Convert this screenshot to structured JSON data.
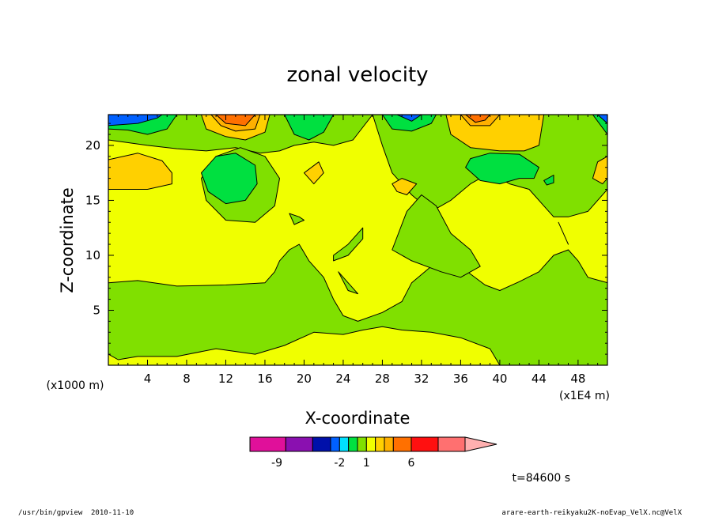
{
  "chart_data": {
    "type": "heatmap",
    "title": "zonal velocity",
    "xlabel": "X-coordinate",
    "ylabel": "Z-coordinate",
    "x_unit": "(x1E4 m)",
    "y_unit": "(x1000 m)",
    "xlim": [
      0,
      51
    ],
    "ylim": [
      0,
      22.8
    ],
    "x_ticks": [
      "4",
      "8",
      "12",
      "16",
      "20",
      "24",
      "28",
      "32",
      "36",
      "40",
      "44",
      "48"
    ],
    "y_ticks": [
      "5",
      "10",
      "15",
      "20"
    ],
    "colorbar": {
      "labels": [
        {
          "text": "-9",
          "at": -9
        },
        {
          "text": "-2",
          "at": -2
        },
        {
          "text": "1",
          "at": 1
        },
        {
          "text": "6",
          "at": 6
        }
      ],
      "levels": [
        {
          "from": -12,
          "to": -8,
          "color": "#e0109a"
        },
        {
          "from": -8,
          "to": -5,
          "color": "#8a10b0"
        },
        {
          "from": -5,
          "to": -3,
          "color": "#0010aa"
        },
        {
          "from": -3,
          "to": -2,
          "color": "#0060ff"
        },
        {
          "from": -2,
          "to": -1,
          "color": "#00e0ff"
        },
        {
          "from": -1,
          "to": 0,
          "color": "#00e040"
        },
        {
          "from": 0,
          "to": 1,
          "color": "#80e000"
        },
        {
          "from": 1,
          "to": 2,
          "color": "#f0ff00"
        },
        {
          "from": 2,
          "to": 3,
          "color": "#ffd000"
        },
        {
          "from": 3,
          "to": 4,
          "color": "#ffb000"
        },
        {
          "from": 4,
          "to": 6,
          "color": "#ff7000"
        },
        {
          "from": 6,
          "to": 9,
          "color": "#ff1010"
        },
        {
          "from": 9,
          "to": 12,
          "color": "#ff7070"
        }
      ],
      "overflow_color": "#ffb0b0"
    },
    "regions": [
      {
        "level": 1,
        "points": [
          [
            0,
            22.8
          ],
          [
            51,
            22.8
          ],
          [
            51,
            0
          ],
          [
            0,
            0
          ]
        ]
      },
      {
        "level": 0,
        "points": [
          [
            0,
            7.5
          ],
          [
            3,
            7.7
          ],
          [
            7,
            7.2
          ],
          [
            12,
            7.3
          ],
          [
            16,
            7.5
          ],
          [
            17,
            8.5
          ],
          [
            17.5,
            9.5
          ],
          [
            18.5,
            10.5
          ],
          [
            19.5,
            11
          ],
          [
            20.5,
            9.5
          ],
          [
            22,
            8
          ],
          [
            23,
            6
          ],
          [
            24,
            4.5
          ],
          [
            25.5,
            4
          ],
          [
            28,
            4.8
          ],
          [
            30,
            5.8
          ],
          [
            31,
            7.5
          ],
          [
            33,
            9
          ],
          [
            34.5,
            9.2
          ],
          [
            36,
            9
          ],
          [
            37,
            8.3
          ],
          [
            38.5,
            7.3
          ],
          [
            40,
            6.8
          ],
          [
            42,
            7.6
          ],
          [
            44,
            8.5
          ],
          [
            45.5,
            10
          ],
          [
            47,
            10.5
          ],
          [
            48,
            9.5
          ],
          [
            49,
            8
          ],
          [
            51,
            7.5
          ],
          [
            51,
            0
          ],
          [
            40,
            0
          ],
          [
            39,
            1.5
          ],
          [
            36,
            2.5
          ],
          [
            33,
            3
          ],
          [
            30,
            3.2
          ],
          [
            28,
            3.5
          ],
          [
            26,
            3.2
          ],
          [
            24,
            2.8
          ],
          [
            21,
            3
          ],
          [
            18,
            1.8
          ],
          [
            15,
            1
          ],
          [
            11,
            1.5
          ],
          [
            7,
            0.8
          ],
          [
            3,
            0.8
          ],
          [
            1,
            0.5
          ],
          [
            0,
            1
          ]
        ]
      },
      {
        "level": 0,
        "points": [
          [
            27,
            22.8
          ],
          [
            28,
            20
          ],
          [
            29,
            17.5
          ],
          [
            31,
            15.5
          ],
          [
            33,
            14
          ],
          [
            35,
            15
          ],
          [
            37,
            16.5
          ],
          [
            39,
            17.5
          ],
          [
            41,
            16.5
          ],
          [
            43,
            16
          ],
          [
            44.5,
            14.5
          ],
          [
            45.5,
            13.5
          ],
          [
            47,
            13.5
          ],
          [
            49,
            14
          ],
          [
            51,
            16
          ],
          [
            51,
            22.8
          ]
        ]
      },
      {
        "level": 0,
        "points": [
          [
            30.5,
            14
          ],
          [
            32,
            15.5
          ],
          [
            33.5,
            14.5
          ],
          [
            35,
            12
          ],
          [
            37,
            10.5
          ],
          [
            38,
            9
          ],
          [
            36,
            8
          ],
          [
            34,
            8.5
          ],
          [
            31,
            9.5
          ],
          [
            29,
            10.5
          ]
        ]
      },
      {
        "level": 0,
        "points": [
          [
            0,
            22.8
          ],
          [
            0,
            20.5
          ],
          [
            4,
            20
          ],
          [
            7,
            19.7
          ],
          [
            10,
            19.5
          ],
          [
            13,
            19.8
          ],
          [
            15.5,
            19.3
          ],
          [
            17.5,
            19.5
          ],
          [
            19,
            20
          ],
          [
            21,
            20.3
          ],
          [
            23,
            20
          ],
          [
            25,
            20.5
          ],
          [
            27,
            22.8
          ]
        ]
      },
      {
        "level": 0,
        "points": [
          [
            9.5,
            17
          ],
          [
            11,
            19
          ],
          [
            13.5,
            19.8
          ],
          [
            16,
            19
          ],
          [
            17.5,
            17
          ],
          [
            17,
            14.5
          ],
          [
            15,
            13
          ],
          [
            12,
            13.2
          ],
          [
            10,
            15
          ]
        ]
      },
      {
        "level": 0,
        "points": [
          [
            23,
            10
          ],
          [
            24.5,
            11
          ],
          [
            26,
            12.5
          ],
          [
            26,
            11.5
          ],
          [
            24.5,
            10
          ],
          [
            23,
            9.5
          ]
        ]
      },
      {
        "level": 0,
        "points": [
          [
            18.5,
            13.8
          ],
          [
            19.5,
            13.5
          ],
          [
            20,
            13.2
          ],
          [
            19,
            12.8
          ]
        ]
      },
      {
        "level": 0,
        "points": [
          [
            23.5,
            8.5
          ],
          [
            24.5,
            7.5
          ],
          [
            25.5,
            6.5
          ],
          [
            24.5,
            6.8
          ]
        ]
      },
      {
        "level": 0,
        "points": [
          [
            46,
            13
          ],
          [
            47,
            11
          ],
          [
            46.5,
            12
          ]
        ]
      },
      {
        "level": -1,
        "points": [
          [
            0,
            21.5
          ],
          [
            2,
            21.4
          ],
          [
            4,
            21
          ],
          [
            6,
            21.5
          ],
          [
            7,
            22.8
          ],
          [
            0,
            22.8
          ]
        ]
      },
      {
        "level": -1,
        "points": [
          [
            9.5,
            17.5
          ],
          [
            11,
            19
          ],
          [
            13,
            19.3
          ],
          [
            15,
            18.2
          ],
          [
            15.2,
            16.5
          ],
          [
            14,
            15
          ],
          [
            12,
            14.7
          ],
          [
            10.2,
            15.8
          ]
        ]
      },
      {
        "level": -1,
        "points": [
          [
            18,
            22.8
          ],
          [
            19,
            21
          ],
          [
            20.5,
            20.5
          ],
          [
            22,
            21.2
          ],
          [
            23,
            22.8
          ]
        ]
      },
      {
        "level": -1,
        "points": [
          [
            28,
            22.8
          ],
          [
            29,
            21.5
          ],
          [
            31,
            21.3
          ],
          [
            33,
            22
          ],
          [
            33.5,
            22.8
          ]
        ]
      },
      {
        "level": -1,
        "points": [
          [
            36.5,
            18
          ],
          [
            38,
            16.8
          ],
          [
            40,
            16.5
          ],
          [
            42,
            17
          ],
          [
            43.5,
            17
          ],
          [
            44,
            18
          ],
          [
            42,
            19.2
          ],
          [
            39,
            19.3
          ],
          [
            37,
            18.8
          ]
        ]
      },
      {
        "level": -1,
        "points": [
          [
            44.5,
            16.8
          ],
          [
            45.5,
            17.3
          ],
          [
            45.5,
            16.6
          ],
          [
            44.8,
            16.4
          ]
        ]
      },
      {
        "level": -1,
        "points": [
          [
            49.5,
            22.8
          ],
          [
            51,
            21
          ],
          [
            51,
            22.8
          ]
        ]
      },
      {
        "level": -3,
        "points": [
          [
            0,
            22.8
          ],
          [
            0,
            21.8
          ],
          [
            3,
            22
          ],
          [
            5,
            22.5
          ],
          [
            5.5,
            22.8
          ]
        ]
      },
      {
        "level": -3,
        "points": [
          [
            29.5,
            22.8
          ],
          [
            31,
            22.2
          ],
          [
            32,
            22.8
          ]
        ]
      },
      {
        "level": -3,
        "points": [
          [
            50,
            22.8
          ],
          [
            51,
            22
          ],
          [
            51,
            22.8
          ]
        ]
      },
      {
        "level": 2,
        "points": [
          [
            0,
            18.7
          ],
          [
            3,
            19.3
          ],
          [
            5.5,
            18.6
          ],
          [
            6.5,
            17.5
          ],
          [
            6.5,
            16.5
          ],
          [
            4,
            16
          ],
          [
            0,
            16
          ]
        ]
      },
      {
        "level": 2,
        "points": [
          [
            9.5,
            22.8
          ],
          [
            10,
            21.5
          ],
          [
            12,
            20.8
          ],
          [
            14,
            20.5
          ],
          [
            16,
            21.2
          ],
          [
            16.5,
            22.8
          ]
        ]
      },
      {
        "level": 2,
        "points": [
          [
            34.5,
            22.8
          ],
          [
            35,
            21
          ],
          [
            37,
            19.8
          ],
          [
            40,
            19.5
          ],
          [
            42.5,
            19.5
          ],
          [
            44,
            20
          ],
          [
            44.5,
            22.8
          ]
        ]
      },
      {
        "level": 2,
        "points": [
          [
            29,
            16.5
          ],
          [
            30,
            17
          ],
          [
            31.5,
            16.5
          ],
          [
            30.5,
            15.5
          ],
          [
            29.5,
            15.8
          ]
        ]
      },
      {
        "level": 2,
        "points": [
          [
            20,
            17.5
          ],
          [
            21.5,
            18.5
          ],
          [
            22,
            17.5
          ],
          [
            21,
            16.5
          ]
        ]
      },
      {
        "level": 2,
        "points": [
          [
            51,
            19
          ],
          [
            50,
            18.5
          ],
          [
            49.5,
            17
          ],
          [
            50.5,
            16.5
          ],
          [
            51,
            17
          ]
        ]
      },
      {
        "level": 3,
        "points": [
          [
            10.5,
            22.8
          ],
          [
            11.5,
            21.8
          ],
          [
            13,
            21.3
          ],
          [
            15,
            21.5
          ],
          [
            15.5,
            22.8
          ]
        ]
      },
      {
        "level": 3,
        "points": [
          [
            36,
            22.8
          ],
          [
            37,
            21.8
          ],
          [
            39,
            21.8
          ],
          [
            40,
            22.8
          ]
        ]
      },
      {
        "level": 4,
        "points": [
          [
            11,
            22.8
          ],
          [
            12,
            22
          ],
          [
            14,
            21.8
          ],
          [
            15,
            22.8
          ]
        ]
      },
      {
        "level": 4,
        "points": [
          [
            36.5,
            22.8
          ],
          [
            37.5,
            22.1
          ],
          [
            38.5,
            22.3
          ],
          [
            39,
            22.8
          ]
        ]
      }
    ]
  },
  "time_label": "t=84600 s",
  "footer": {
    "program": "/usr/bin/gpview",
    "date": "2010-11-10",
    "source": "arare-earth-reikyaku2K-noEvap_VelX.nc@VelX"
  }
}
